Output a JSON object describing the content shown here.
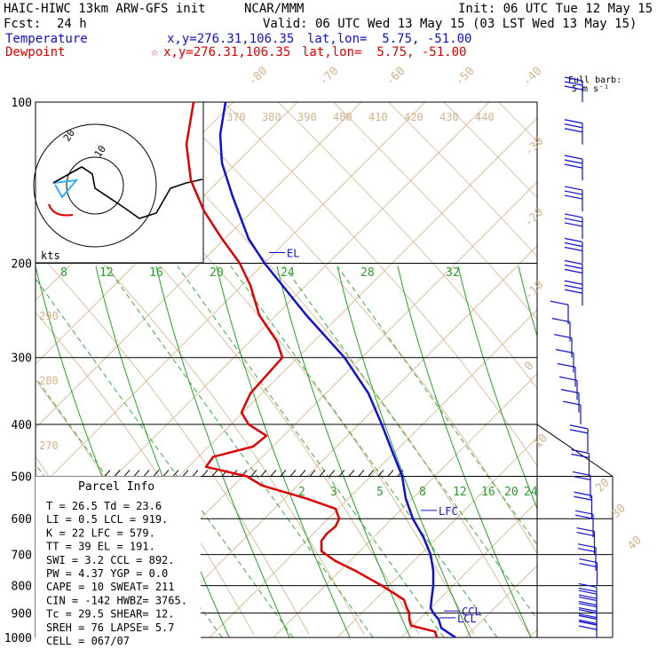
{
  "header": {
    "model": "HAIC-HIWC 13km ARW-GFS init",
    "org": "NCAR/MMM",
    "init": "Init: 06 UTC Tue 12 May 15",
    "fcst_label": "Fcst:",
    "fcst_value": "24 h",
    "valid": "Valid: 06 UTC Wed 13 May 15 (03 LST Wed 13 May 15)",
    "temp_label": "Temperature",
    "temp_xy": "x,y=276.31,106.35",
    "temp_latlon": "lat,lon=  5.75, -51.00",
    "dew_label": "Dewpoint",
    "dew_marker": "☆",
    "dew_xy": "x,y=276.31,106.35",
    "dew_latlon": "lat,lon=  5.75, -51.00",
    "barb_label_1": "Full barb:",
    "barb_label_2": "5 m s⁻¹"
  },
  "colors": {
    "temperature": "#1010d0",
    "dewpoint": "#e00000",
    "isotherm": "#d2b48c",
    "mixing_ratio": "#2aa02a",
    "isobar": "#000000",
    "hodograph_low": "#30b0ff"
  },
  "chart_data": {
    "type": "line",
    "y_scale": "log-pressure",
    "ylim": [
      1000,
      100
    ],
    "isobars": [
      100,
      200,
      300,
      400,
      500,
      600,
      700,
      800,
      900,
      1000
    ],
    "isobar_labels": [
      "100",
      "200",
      "300",
      "400",
      "500",
      "600",
      "700",
      "800",
      "900",
      "1000"
    ],
    "isotherm_labels_top": [
      "-80",
      "-70",
      "-60",
      "-50",
      "-40"
    ],
    "isotherm_labels_right": [
      "-30",
      "-20",
      "-10",
      "0",
      "10",
      "20",
      "30",
      "40"
    ],
    "theta_labels_top": [
      "370",
      "380",
      "390",
      "400",
      "410",
      "420",
      "430",
      "440"
    ],
    "theta_labels_left": [
      "290",
      "280",
      "270"
    ],
    "mixing_labels_upper": [
      "8",
      "12",
      "16",
      "20",
      "24",
      "28",
      "32"
    ],
    "mixing_labels_lower": [
      "2",
      "3",
      "5",
      "8",
      "12",
      "16",
      "20",
      "24"
    ],
    "series": [
      {
        "name": "Temperature",
        "p": [
          1000,
          960,
          925,
          900,
          880,
          850,
          800,
          750,
          700,
          650,
          600,
          550,
          500,
          450,
          400,
          350,
          300,
          250,
          200,
          180,
          150,
          130,
          115,
          100
        ],
        "x": [
          513,
          497,
          494,
          488,
          485,
          486,
          488,
          488,
          485,
          477,
          465,
          457,
          453,
          442,
          430,
          415,
          388,
          345,
          298,
          280,
          262,
          250,
          248,
          254
        ]
      },
      {
        "name": "Dewpoint",
        "p": [
          1000,
          975,
          950,
          925,
          900,
          880,
          850,
          800,
          750,
          720,
          690,
          660,
          640,
          620,
          600,
          575,
          550,
          520,
          500,
          480,
          460,
          440,
          420,
          400,
          380,
          350,
          320,
          300,
          280,
          250,
          220,
          200,
          180,
          160,
          140,
          120,
          100
        ],
        "x": [
          492,
          490,
          463,
          461,
          461,
          458,
          455,
          430,
          400,
          378,
          362,
          362,
          368,
          378,
          382,
          378,
          345,
          295,
          278,
          232,
          240,
          285,
          300,
          280,
          272,
          282,
          303,
          318,
          312,
          292,
          282,
          270,
          250,
          230,
          215,
          210,
          218
        ]
      }
    ],
    "annotations": [
      {
        "label": "EL",
        "p": 191
      },
      {
        "label": "LFC",
        "p": 579
      },
      {
        "label": "CCL",
        "p": 892
      },
      {
        "label": "LCL",
        "p": 919
      }
    ],
    "hodograph": {
      "rings": [
        "10",
        "20"
      ],
      "axis_label": "kts"
    },
    "wind_barbs_pressure": [
      100,
      120,
      140,
      160,
      180,
      200,
      220,
      240,
      260,
      280,
      300,
      320,
      340,
      360,
      380,
      400,
      450,
      500,
      550,
      600,
      650,
      700,
      750,
      800,
      850,
      875,
      900,
      925,
      950,
      975,
      1000
    ]
  },
  "parcel_info": {
    "title": "Parcel Info",
    "rows": [
      "T   =   26.5  Td =  23.6",
      "LI  =    0.5  LCL =  919.",
      "K   =     22  LFC =  579.",
      "TT  =     39  EL  =  191.",
      "SWI =    3.2  CCL =  892.",
      "PW  =   4.37  YGP =   0.0",
      "CAPE =    10  SWEAT=  211",
      "CIN =   -142  HWBZ= 3765.",
      "Tc  =   29.5  SHEAR=  12.",
      "SREH =    76  LAPSE=  5.7",
      "CELL = 067/07"
    ]
  }
}
